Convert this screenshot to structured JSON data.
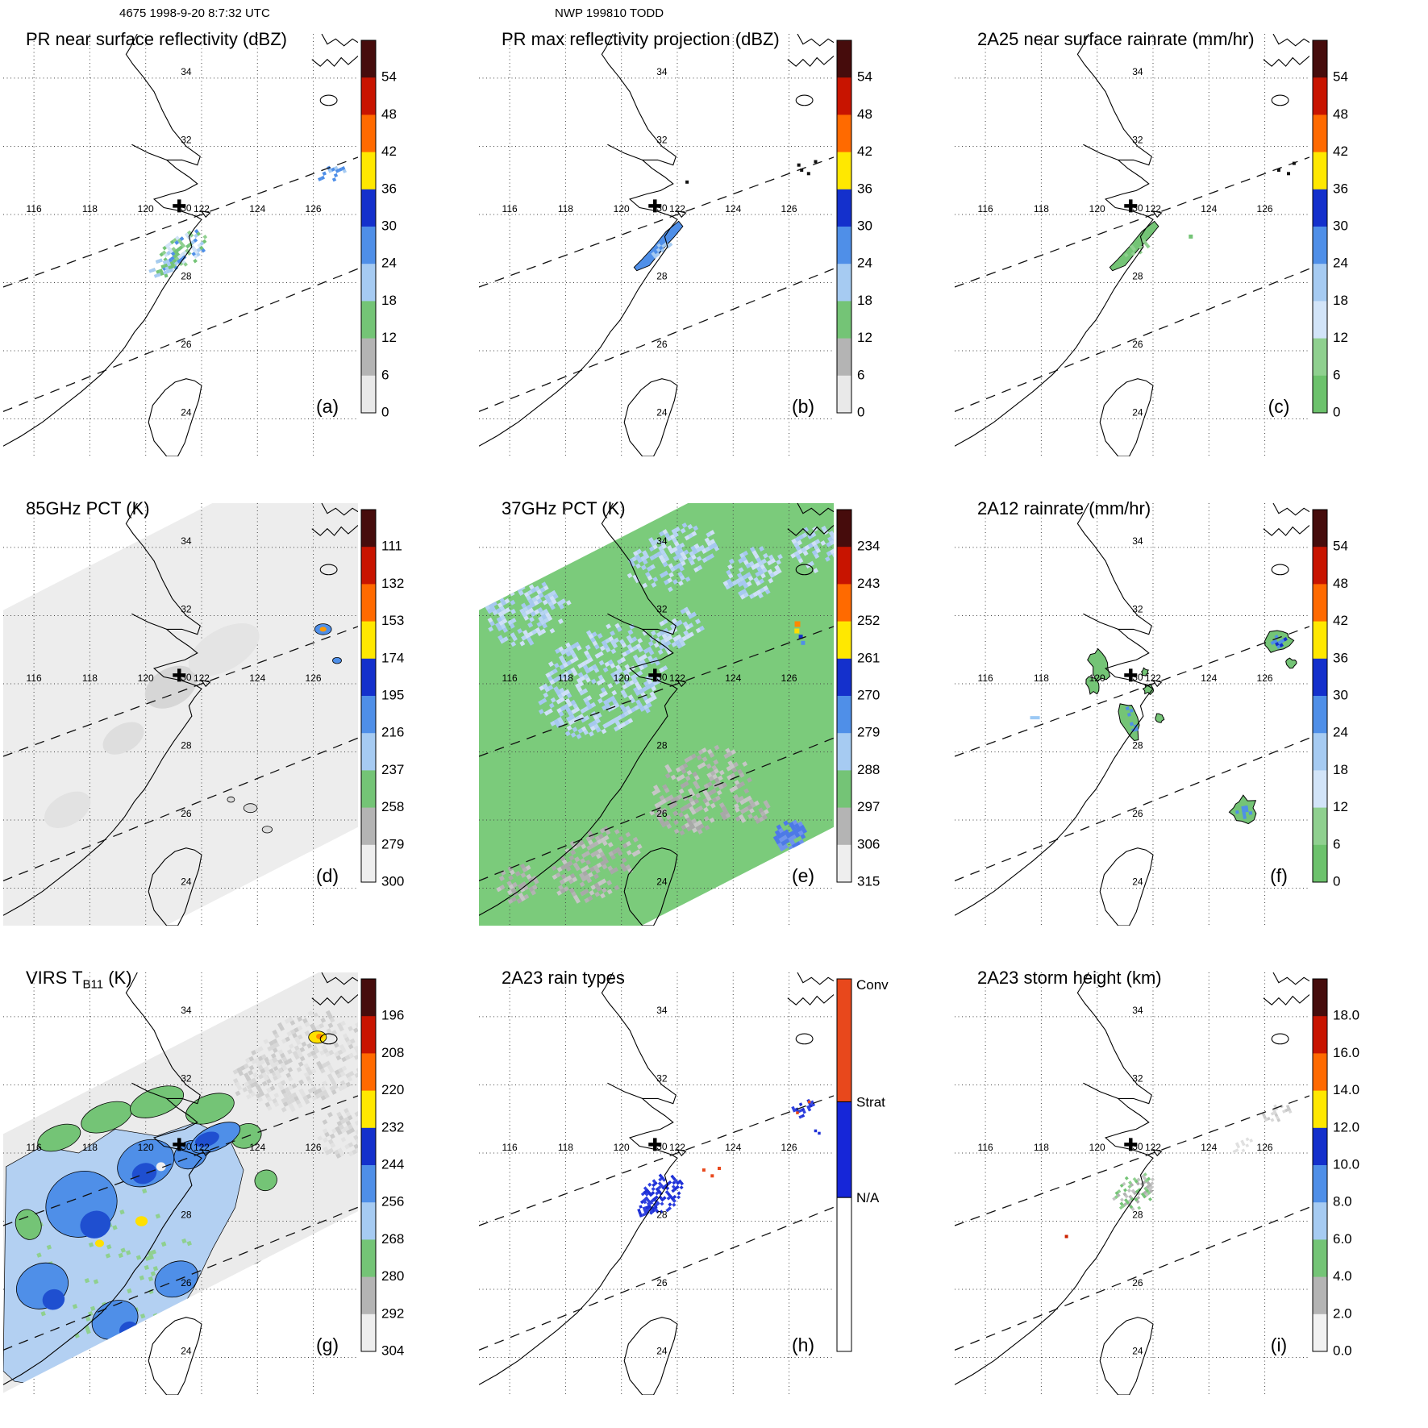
{
  "header": {
    "left_annotation": "4675 1998-9-20 8:7:32 UTC",
    "center_annotation": "NWP 199810 TODD"
  },
  "map_labels": {
    "lon": [
      "116",
      "118",
      "120",
      "122",
      "124",
      "126"
    ],
    "lat": [
      "34",
      "32",
      "30",
      "28",
      "26",
      "24"
    ]
  },
  "chart_data": {
    "type": "heatmap",
    "title": "NWP 199810 TODD",
    "timestamp": "4675 1998-9-20 8:7:32 UTC",
    "layout": "3x3 grid of TRMM multi-sensor map panels, East China Sea / Taiwan region, each with its own vertical colorbar on the right",
    "grid": {
      "lon_ticks": [
        116,
        118,
        120,
        122,
        124,
        126
      ],
      "lat_ticks": [
        24,
        26,
        28,
        30,
        32,
        34
      ],
      "lon_range": [
        114.9,
        127.6
      ],
      "lat_range": [
        22.9,
        35.3
      ],
      "gridlines": "dotted every 2 degrees"
    },
    "storm_marker": {
      "symbol": "+",
      "lon": 121.2,
      "lat": 30.25
    },
    "swath_edge_lines": [
      {
        "style": "dashed",
        "lat_at_115E": 27.9,
        "slope_lat_per_lon": 0.3
      },
      {
        "style": "dashed",
        "lat_at_115E": 24.25,
        "slope_lat_per_lon": 0.33
      }
    ],
    "panels": [
      {
        "id": "a",
        "letter_label": "(a)",
        "title_parts": [
          {
            "text": "PR near surface reflectivity (dBZ)"
          }
        ],
        "colorbar": {
          "ticks": [
            "54",
            "48",
            "42",
            "36",
            "30",
            "24",
            "18",
            "12",
            "6",
            "0"
          ],
          "segment_colors": [
            "#460c0c",
            "#c81400",
            "#ff6a00",
            "#ffe800",
            "#1430cc",
            "#4f8fe8",
            "#a6cbf2",
            "#74c476",
            "#b4b4b4",
            "#e9e9e9"
          ]
        },
        "features": "Light 18-30 dBZ echo speckle along Zhejiang coast near 121E 29N; small echo cluster near 126.6E 31.3N"
      },
      {
        "id": "b",
        "letter_label": "(b)",
        "title_parts": [
          {
            "text": "PR max reflectivity projection (dBZ)"
          }
        ],
        "colorbar": {
          "ticks": [
            "54",
            "48",
            "42",
            "36",
            "30",
            "24",
            "18",
            "12",
            "6",
            "0"
          ],
          "segment_colors": [
            "#460c0c",
            "#c81400",
            "#ff6a00",
            "#ffe800",
            "#1430cc",
            "#4f8fe8",
            "#a6cbf2",
            "#74c476",
            "#b4b4b4",
            "#e9e9e9"
          ]
        },
        "features": "Coherent blue echo band along coast 120.6-122.2E 28.4-29.8N; small dark echoes near 126.5E 31.4N"
      },
      {
        "id": "c",
        "letter_label": "(c)",
        "title_parts": [
          {
            "text": "2A25 near surface rainrate (mm/hr)"
          }
        ],
        "colorbar": {
          "ticks": [
            "54",
            "48",
            "42",
            "36",
            "30",
            "24",
            "18",
            "12",
            "6",
            "0"
          ],
          "segment_colors": [
            "#460c0c",
            "#c81400",
            "#ff6a00",
            "#ffe800",
            "#1430cc",
            "#4f8fe8",
            "#a6cbf2",
            "#d2e4f8",
            "#8fd08f",
            "#6cc26c"
          ]
        },
        "features": "Outlined green light-rain area along coast near 121E 29N; tiny cells near 126.5E 31.3N"
      },
      {
        "id": "d",
        "letter_label": "(d)",
        "title_parts": [
          {
            "text": "85GHz PCT (K)"
          }
        ],
        "colorbar": {
          "ticks": [
            "111",
            "132",
            "153",
            "174",
            "195",
            "216",
            "237",
            "258",
            "279",
            "300"
          ],
          "segment_colors": [
            "#460c0c",
            "#c81400",
            "#ff6a00",
            "#ffe800",
            "#1430cc",
            "#4f8fe8",
            "#a6cbf2",
            "#74c476",
            "#b4b4b4",
            "#eeeeee"
          ]
        },
        "features": "Wide TMI swath, warm ~280-300 K background (light gray); depressed-PCT cells near 126.4E 31.6N, 126.8E 30.7N and 123-124.5E 25.7-26.7N"
      },
      {
        "id": "e",
        "letter_label": "(e)",
        "title_parts": [
          {
            "text": "37GHz PCT (K)"
          }
        ],
        "colorbar": {
          "ticks": [
            "234",
            "243",
            "252",
            "261",
            "270",
            "279",
            "288",
            "297",
            "306",
            "315"
          ],
          "segment_colors": [
            "#460c0c",
            "#c81400",
            "#ff6a00",
            "#ffe800",
            "#1430cc",
            "#4f8fe8",
            "#a6cbf2",
            "#74c476",
            "#b4b4b4",
            "#eeeeee"
          ]
        },
        "features": "Swath mostly ~285 K (green); 265-280 K pale-blue moist areas over the northwest and along 33-34N; gray ~295 K land areas south; cold cell near 126.3E 31.6N; blue cells near 126E 25.5N"
      },
      {
        "id": "f",
        "letter_label": "(f)",
        "title_parts": [
          {
            "text": "2A12 rainrate (mm/hr)"
          }
        ],
        "colorbar": {
          "ticks": [
            "54",
            "48",
            "42",
            "36",
            "30",
            "24",
            "18",
            "12",
            "6",
            "0"
          ],
          "segment_colors": [
            "#460c0c",
            "#c81400",
            "#ff6a00",
            "#ffe800",
            "#1430cc",
            "#4f8fe8",
            "#a6cbf2",
            "#d2e4f8",
            "#8fd08f",
            "#6cc26c"
          ]
        },
        "features": "Scattered outlined rain cells: large cell 126.5E 31.3N with blue core, chain near 120E 30-30.8N, elongated band 121-121.4E 28.3-29.5N, cells near 121.9E 29.9N and 125.2E 26.3N"
      },
      {
        "id": "g",
        "letter_label": "(g)",
        "title_parts": [
          {
            "text": "VIRS T"
          },
          {
            "text": "B11",
            "sub": true
          },
          {
            "text": " (K)"
          }
        ],
        "colorbar": {
          "ticks": [
            "196",
            "208",
            "220",
            "232",
            "244",
            "256",
            "268",
            "280",
            "292",
            "304"
          ],
          "segment_colors": [
            "#460c0c",
            "#c81400",
            "#ff6a00",
            "#ffe800",
            "#1430cc",
            "#4f8fe8",
            "#a6cbf2",
            "#74c476",
            "#b4b4b4",
            "#eeeeee"
          ]
        },
        "features": "Cold cloud shield of TC Todd (blue 230-250 K with green 260-270 K fringe) over 115-124E 23-31.5N, eye near 120.6E 29.6N, yellow cores ~230 K; very cold orange/yellow convection near 126E 24.6N; warm gray cloud field to the northeast"
      },
      {
        "id": "h",
        "letter_label": "(h)",
        "title_parts": [
          {
            "text": "2A23 rain types"
          }
        ],
        "colorbar": {
          "type": "categorical",
          "labels": [
            "Conv",
            "Strat",
            "N/A"
          ],
          "colors": [
            "#e8481c",
            "#1626d8",
            "#ffffff"
          ],
          "boundaries": [
            0,
            0.33,
            0.587,
            1
          ]
        },
        "features": "Mostly stratiform (blue) pixels along coast 120.8-122E 28.3-29.3N; few convective (red) pixels near 123E 29.5N and 126.6E 31.4N; stratiform specks near 126.5E 31.3N"
      },
      {
        "id": "i",
        "letter_label": "(i)",
        "title_parts": [
          {
            "text": "2A23 storm height (km)"
          }
        ],
        "colorbar": {
          "ticks": [
            "18.0",
            "16.0",
            "14.0",
            "12.0",
            "10.0",
            "8.0",
            "6.0",
            "4.0",
            "2.0",
            "0.0"
          ],
          "segment_colors": [
            "#460c0c",
            "#c81400",
            "#ff6a00",
            "#ffe800",
            "#1430cc",
            "#4f8fe8",
            "#a6cbf2",
            "#74c476",
            "#b4b4b4",
            "#f2f2f2"
          ]
        },
        "features": "Storm heights mostly 2-6 km (gray/green) in coastal band near 121E 29N; faint gray echoes near 126.4E 31.2N and 125E 30.2N; one small high cell near 118.9E 27.6N"
      }
    ]
  }
}
